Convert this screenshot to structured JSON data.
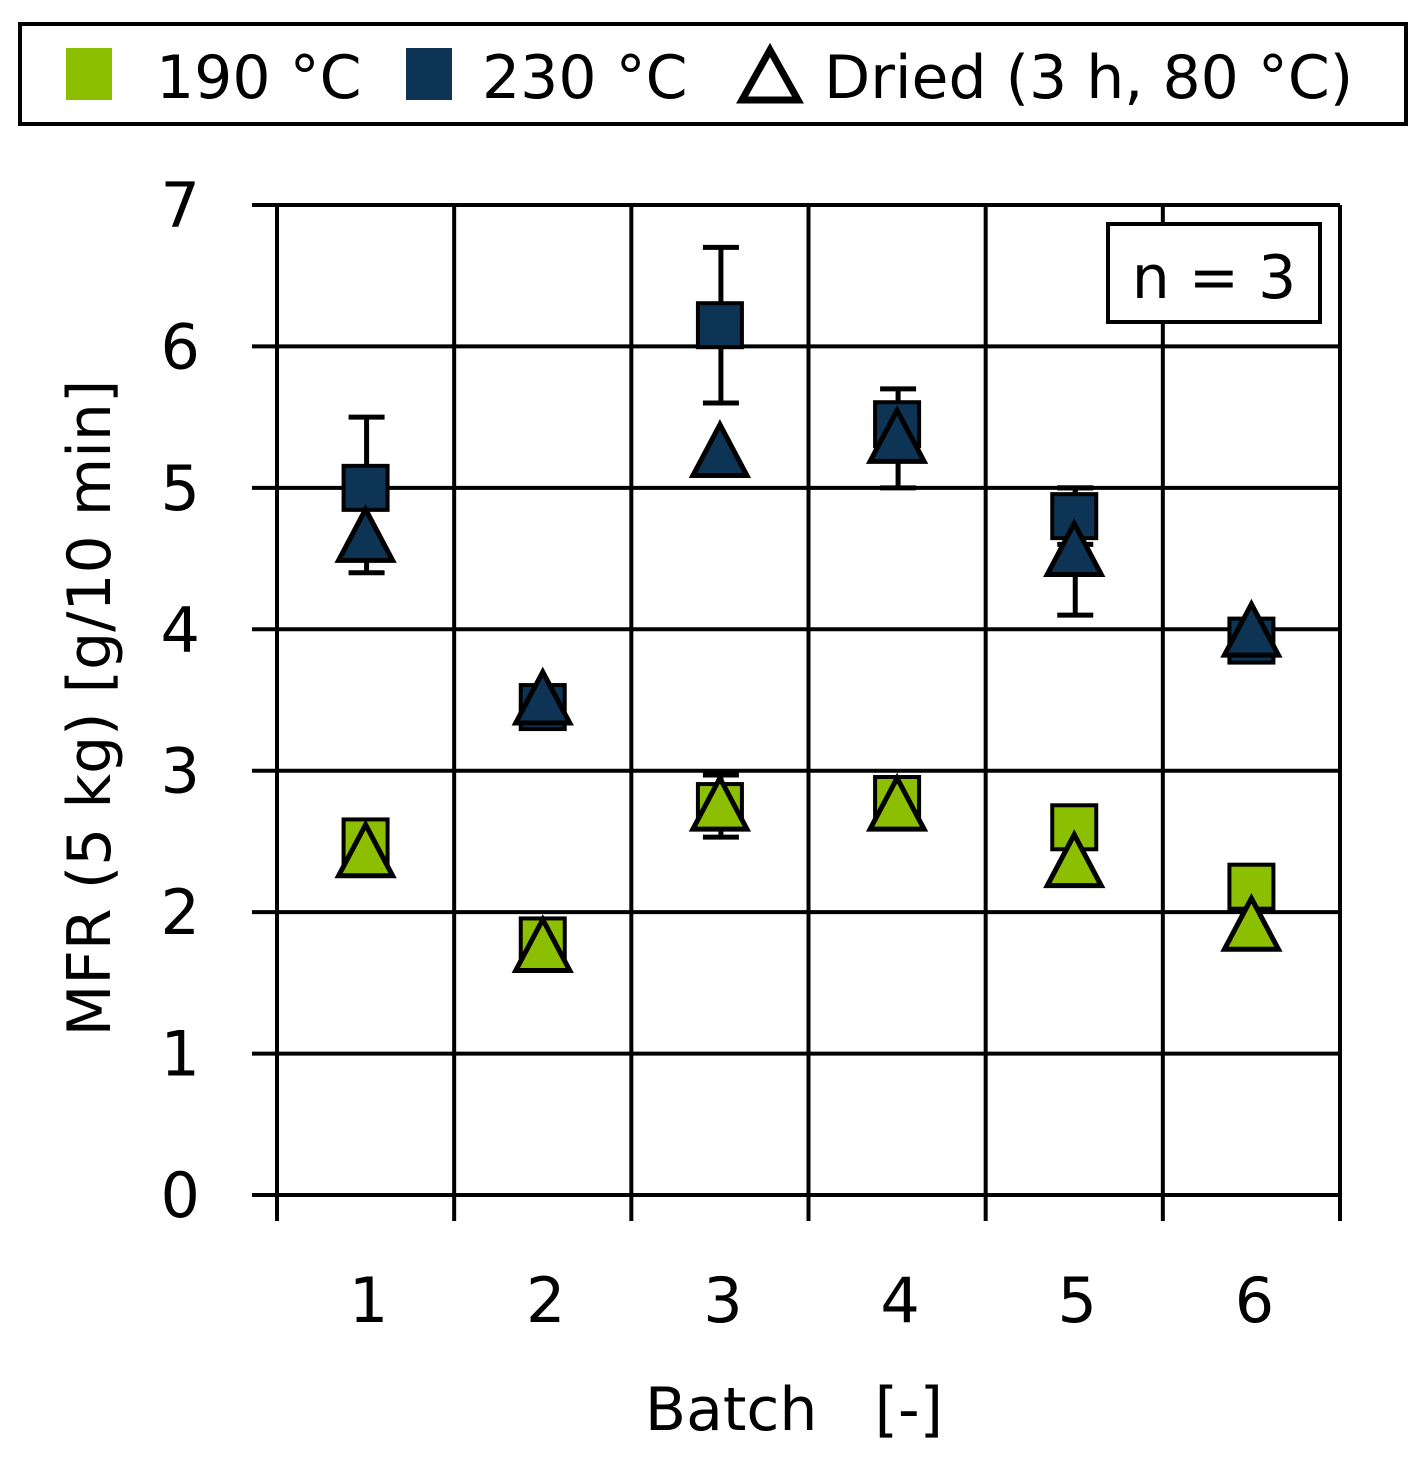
{
  "chart_data": {
    "type": "scatter",
    "xlabel": "Batch   [-]",
    "ylabel": "MFR (5 kg)   [g/10 min]",
    "categories": [
      "1",
      "2",
      "3",
      "4",
      "5",
      "6"
    ],
    "ylim": [
      0,
      7
    ],
    "yticks": [
      "0",
      "1",
      "2",
      "3",
      "4",
      "5",
      "6",
      "7"
    ],
    "grid": true,
    "legend_position": "top",
    "annotation": "n = 3",
    "series": [
      {
        "name": "190 °C",
        "marker": "square",
        "color": "#8cbf00",
        "values": [
          2.5,
          1.8,
          2.75,
          2.8,
          2.6,
          2.18
        ],
        "error": [
          null,
          null,
          null,
          null,
          null,
          null
        ]
      },
      {
        "name": "230 °C",
        "marker": "square",
        "color": "#0d3454",
        "values": [
          5.0,
          3.45,
          6.15,
          5.45,
          4.8,
          3.92
        ],
        "error": [
          0.5,
          null,
          0.55,
          null,
          0.2,
          null
        ]
      },
      {
        "name": "Dried (3 h, 80 °C)",
        "marker": "triangle",
        "color": "#ffffff",
        "on_190": [
          2.42,
          1.75,
          2.75,
          2.75,
          2.35,
          1.9
        ],
        "on_190_error": [
          null,
          null,
          0.22,
          null,
          null,
          0.12
        ],
        "on_230": [
          4.65,
          3.5,
          5.25,
          5.35,
          4.55,
          3.98
        ],
        "on_230_error": [
          0.25,
          null,
          null,
          0.35,
          0.45,
          null
        ]
      }
    ]
  }
}
